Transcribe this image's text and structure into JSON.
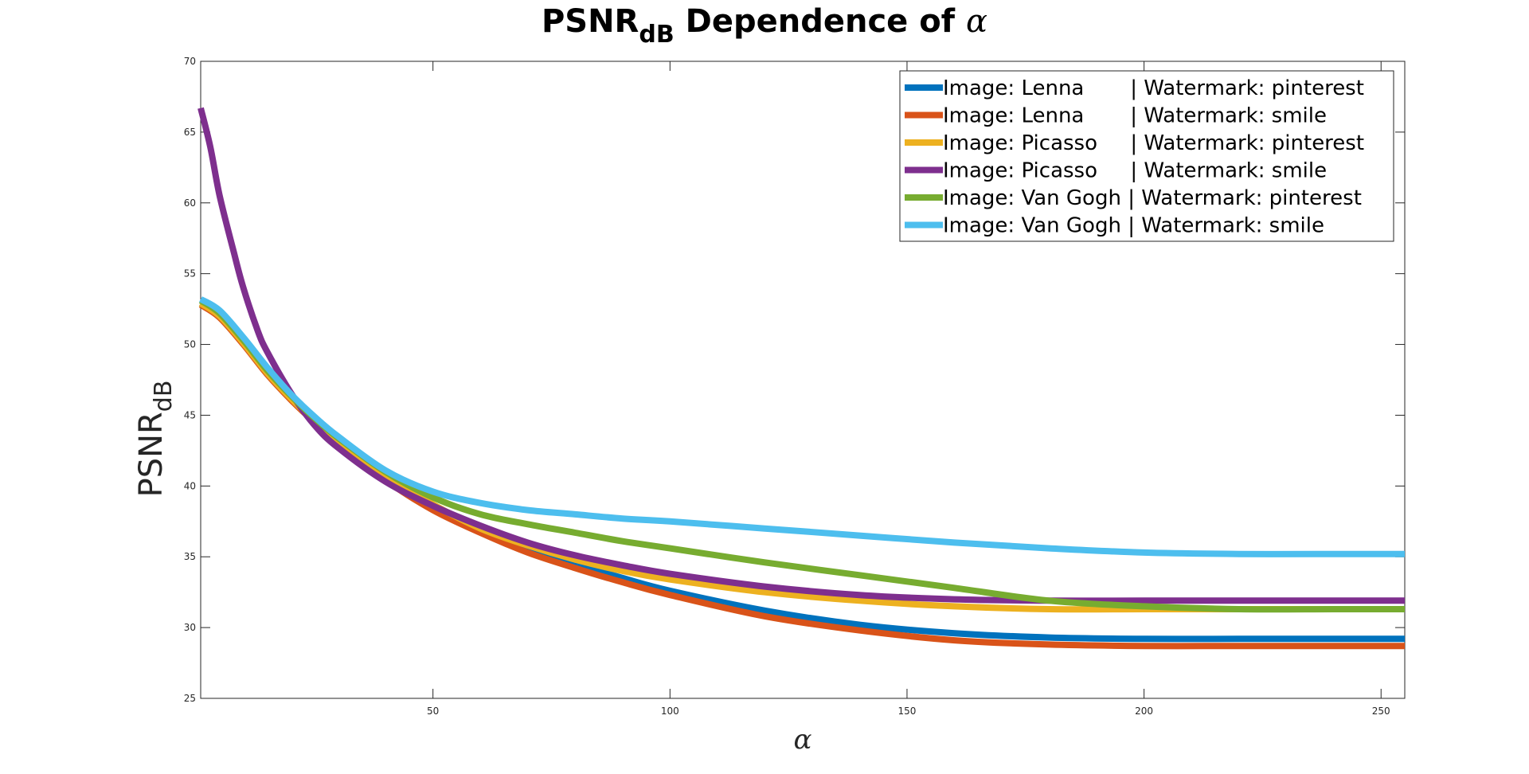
{
  "chart_data": {
    "type": "line",
    "title": {
      "main": "PSNR",
      "sub": "dB",
      "rest": " Dependence of ",
      "symbol": "α"
    },
    "xlabel": "α",
    "ylabel": {
      "main": "PSNR",
      "sub": "dB"
    },
    "xlim": [
      1,
      255
    ],
    "ylim": [
      25,
      70
    ],
    "xticks": [
      50,
      100,
      150,
      200,
      250
    ],
    "yticks": [
      25,
      30,
      35,
      40,
      45,
      50,
      55,
      60,
      65,
      70
    ],
    "grid": false,
    "legend_position": "top-right",
    "series": [
      {
        "name": "Image: Lenna       | Watermark: pinterest",
        "color": "#0072BD",
        "x": [
          1,
          5,
          10,
          15,
          20,
          25,
          30,
          40,
          50,
          60,
          70,
          80,
          90,
          100,
          120,
          140,
          160,
          180,
          200,
          220,
          240,
          255
        ],
        "y": [
          52.9,
          52.0,
          50.1,
          48.0,
          46.2,
          44.6,
          43.1,
          40.5,
          38.5,
          36.9,
          35.6,
          34.5,
          33.5,
          32.6,
          31.2,
          30.2,
          29.6,
          29.3,
          29.2,
          29.2,
          29.2,
          29.2
        ]
      },
      {
        "name": "Image: Lenna       | Watermark: smile",
        "color": "#D95319",
        "x": [
          1,
          5,
          10,
          15,
          20,
          25,
          30,
          40,
          50,
          60,
          70,
          80,
          90,
          100,
          120,
          140,
          160,
          180,
          200,
          220,
          240,
          255
        ],
        "y": [
          52.8,
          51.9,
          50.0,
          47.9,
          46.1,
          44.5,
          43.0,
          40.4,
          38.3,
          36.7,
          35.3,
          34.2,
          33.2,
          32.3,
          30.8,
          29.8,
          29.1,
          28.8,
          28.7,
          28.7,
          28.7,
          28.7
        ]
      },
      {
        "name": "Image: Picasso     | Watermark: pinterest",
        "color": "#EDB120",
        "x": [
          1,
          5,
          10,
          15,
          20,
          25,
          30,
          40,
          50,
          60,
          70,
          80,
          90,
          100,
          120,
          140,
          160,
          180,
          200,
          220,
          240,
          255
        ],
        "y": [
          52.9,
          52.0,
          50.1,
          48.0,
          46.2,
          44.6,
          43.2,
          40.7,
          38.7,
          37.0,
          35.8,
          34.8,
          34.0,
          33.4,
          32.5,
          31.9,
          31.5,
          31.3,
          31.3,
          31.3,
          31.3,
          31.3
        ]
      },
      {
        "name": "Image: Picasso     | Watermark: smile",
        "color": "#7E2F8E",
        "x": [
          1,
          3,
          5,
          8,
          10,
          13,
          15,
          20,
          25,
          30,
          40,
          50,
          60,
          70,
          80,
          90,
          100,
          120,
          140,
          160,
          180,
          200,
          220,
          240,
          255
        ],
        "y": [
          66.7,
          64.0,
          60.5,
          56.5,
          54.0,
          51.0,
          49.5,
          46.6,
          44.3,
          42.7,
          40.3,
          38.6,
          37.2,
          36.0,
          35.1,
          34.4,
          33.8,
          32.9,
          32.3,
          32.0,
          31.9,
          31.9,
          31.9,
          31.9,
          31.9
        ]
      },
      {
        "name": "Image: Van Gogh | Watermark: pinterest",
        "color": "#77AC30",
        "x": [
          1,
          5,
          10,
          15,
          20,
          25,
          30,
          40,
          50,
          60,
          70,
          80,
          90,
          100,
          120,
          140,
          160,
          180,
          200,
          220,
          240,
          255
        ],
        "y": [
          53.1,
          52.2,
          50.3,
          48.2,
          46.4,
          44.8,
          43.4,
          41.0,
          39.2,
          38.0,
          37.3,
          36.7,
          36.1,
          35.6,
          34.6,
          33.7,
          32.8,
          31.9,
          31.5,
          31.3,
          31.3,
          31.3
        ]
      },
      {
        "name": "Image: Van Gogh | Watermark: smile",
        "color": "#4DBEEE",
        "x": [
          1,
          5,
          10,
          15,
          20,
          25,
          30,
          40,
          50,
          60,
          70,
          80,
          90,
          100,
          120,
          140,
          160,
          180,
          200,
          220,
          240,
          255
        ],
        "y": [
          53.2,
          52.4,
          50.5,
          48.4,
          46.5,
          44.9,
          43.5,
          41.1,
          39.6,
          38.8,
          38.3,
          38.0,
          37.7,
          37.5,
          37.0,
          36.5,
          36.0,
          35.6,
          35.3,
          35.2,
          35.2,
          35.2
        ]
      }
    ]
  }
}
